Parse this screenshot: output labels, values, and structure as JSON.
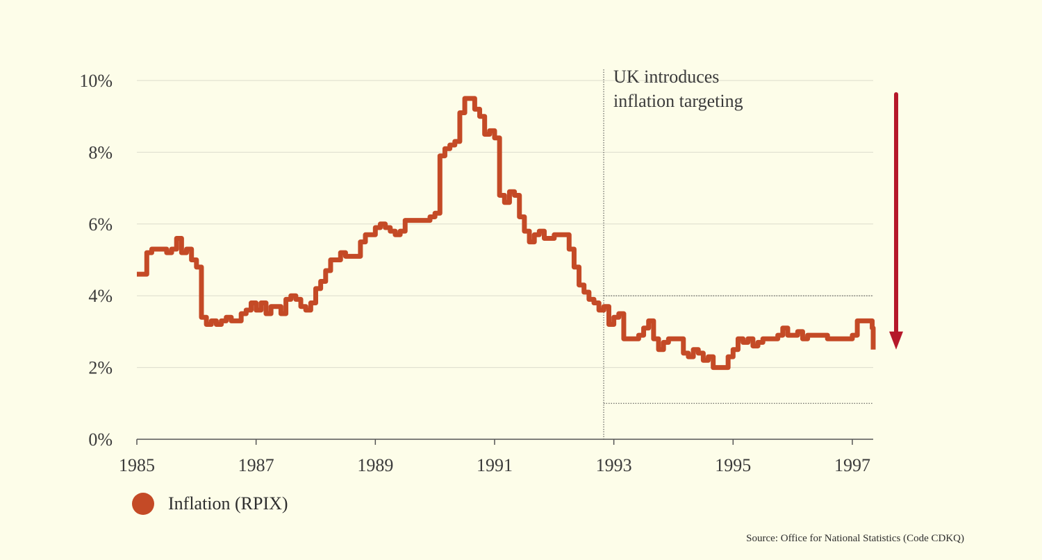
{
  "chart_data": {
    "type": "line",
    "title": "",
    "xlabel": "",
    "ylabel": "",
    "xlim": [
      1985,
      1997.35
    ],
    "ylim": [
      0,
      10
    ],
    "x_ticks": [
      1985,
      1987,
      1989,
      1991,
      1993,
      1995,
      1997
    ],
    "y_ticks": [
      0,
      2,
      4,
      6,
      8,
      10
    ],
    "y_tick_labels": [
      "0%",
      "2%",
      "4%",
      "6%",
      "8%",
      "10%"
    ],
    "grid": true,
    "legend_position": "bottom-left",
    "series": [
      {
        "name": "Inflation (RPIX)",
        "color": "#c44a26",
        "x_start": 1985.0,
        "x_step_months": 1,
        "values": [
          4.6,
          4.6,
          5.2,
          5.3,
          5.3,
          5.3,
          5.2,
          5.3,
          5.6,
          5.2,
          5.3,
          5.0,
          4.8,
          3.4,
          3.2,
          3.3,
          3.2,
          3.3,
          3.4,
          3.3,
          3.3,
          3.5,
          3.6,
          3.8,
          3.6,
          3.8,
          3.5,
          3.7,
          3.7,
          3.5,
          3.9,
          4.0,
          3.9,
          3.7,
          3.6,
          3.8,
          4.2,
          4.4,
          4.7,
          5.0,
          5.0,
          5.2,
          5.1,
          5.1,
          5.1,
          5.5,
          5.7,
          5.7,
          5.9,
          6.0,
          5.9,
          5.8,
          5.7,
          5.8,
          6.1,
          6.1,
          6.1,
          6.1,
          6.1,
          6.2,
          6.3,
          7.9,
          8.1,
          8.2,
          8.3,
          9.1,
          9.5,
          9.5,
          9.2,
          9.0,
          8.5,
          8.6,
          8.4,
          6.8,
          6.6,
          6.9,
          6.8,
          6.2,
          5.8,
          5.5,
          5.7,
          5.8,
          5.6,
          5.6,
          5.7,
          5.7,
          5.7,
          5.3,
          4.8,
          4.3,
          4.1,
          3.9,
          3.8,
          3.6,
          3.7,
          3.2,
          3.4,
          3.5,
          2.8,
          2.8,
          2.8,
          2.9,
          3.1,
          3.3,
          2.8,
          2.5,
          2.7,
          2.8,
          2.8,
          2.8,
          2.4,
          2.3,
          2.5,
          2.4,
          2.2,
          2.3,
          2.0,
          2.0,
          2.0,
          2.3,
          2.5,
          2.8,
          2.7,
          2.8,
          2.6,
          2.7,
          2.8,
          2.8,
          2.8,
          2.9,
          3.1,
          2.9,
          2.9,
          3.0,
          2.8,
          2.9,
          2.9,
          2.9,
          2.9,
          2.8,
          2.8,
          2.8,
          2.8,
          2.8,
          2.9,
          3.3,
          3.3,
          3.3,
          3.1,
          3.1,
          2.9,
          2.7,
          2.5,
          2.5
        ]
      }
    ],
    "target_band": {
      "upper": 4.0,
      "lower": 1.0,
      "start_x": 1992.83
    },
    "annotation": {
      "x": 1992.83,
      "line1": "UK introduces",
      "line2": "inflation targeting"
    },
    "arrow_color": "#b5182a"
  },
  "legend": {
    "label": "Inflation (RPIX)"
  },
  "source": "Source: Office for National Statistics (Code CDKQ)"
}
